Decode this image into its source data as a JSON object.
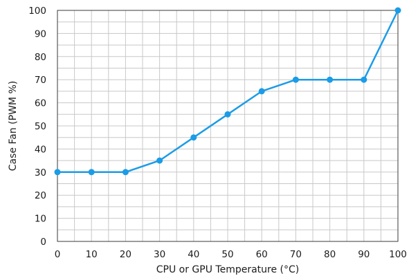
{
  "chart_data": {
    "type": "line",
    "title": "",
    "xlabel": "CPU or GPU Temperature (°C)",
    "ylabel": "Case Fan (PWM %)",
    "xlim": [
      0,
      100
    ],
    "ylim": [
      0,
      100
    ],
    "x_ticks": [
      0,
      10,
      20,
      30,
      40,
      50,
      60,
      70,
      80,
      90,
      100
    ],
    "y_ticks": [
      0,
      10,
      20,
      30,
      40,
      50,
      60,
      70,
      80,
      90,
      100
    ],
    "grid": true,
    "legend": "none",
    "series": [
      {
        "x": [
          0,
          10,
          20,
          30,
          40,
          50,
          60,
          70,
          80,
          90,
          100
        ],
        "values": [
          30,
          30,
          30,
          35,
          45,
          55,
          65,
          70,
          70,
          70,
          100
        ],
        "color": "#1b9ce6"
      }
    ]
  }
}
